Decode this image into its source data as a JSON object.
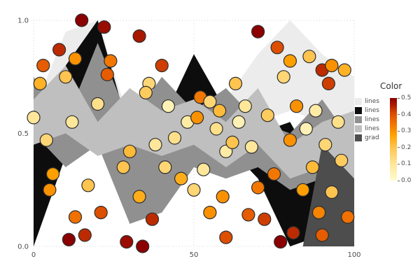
{
  "figure": {
    "background": "#ffffff"
  },
  "legend": {
    "title": "Color",
    "entries": [
      {
        "label": "lines",
        "color": "#ececec"
      },
      {
        "label": "lines",
        "color": "#0d0d0d"
      },
      {
        "label": "lines",
        "color": "#909090"
      },
      {
        "label": "lines",
        "color": "#bfbfbf"
      },
      {
        "label": "grad",
        "color": "#4d4d4d"
      }
    ],
    "colorbar": {
      "ticks": [
        "0.5",
        "0.4",
        "0.3",
        "0.2",
        "0.1",
        "0.0"
      ]
    }
  },
  "chart_data": [
    {
      "type": "area",
      "xlim": [
        0,
        100
      ],
      "ylim": [
        0,
        1
      ],
      "x_ticks": [
        "0",
        "50",
        "100"
      ],
      "x_tick_values": [
        0,
        50,
        100
      ],
      "y_ticks": [
        "0.0",
        "0.5",
        "1.0"
      ],
      "y_tick_values": [
        0,
        0.5,
        1
      ],
      "grid": "dotted",
      "x": [
        0,
        10,
        20,
        30,
        40,
        50,
        60,
        70,
        80,
        90,
        100
      ],
      "series": [
        {
          "name": "lines",
          "color": "#ececec",
          "top": [
            0.6,
            0.95,
            1.0,
            0.55,
            0.6,
            0.5,
            0.65,
            0.85,
            1.0,
            0.85,
            0.75
          ],
          "bottom": [
            0.5,
            0.55,
            0.5,
            0.45,
            0.45,
            0.45,
            0.5,
            0.55,
            0.6,
            0.55,
            0.5
          ]
        },
        {
          "name": "lines",
          "color": "#0d0d0d",
          "top": [
            0.45,
            0.8,
            1.0,
            0.5,
            0.55,
            0.85,
            0.6,
            0.5,
            0.55,
            0.3,
            0.5
          ],
          "bottom": [
            0.0,
            0.4,
            0.55,
            0.1,
            0.35,
            0.5,
            0.45,
            0.3,
            0.0,
            0.05,
            0.3
          ]
        },
        {
          "name": "lines",
          "color": "#909090",
          "top": [
            0.75,
            0.55,
            0.9,
            0.55,
            0.75,
            0.6,
            0.7,
            0.55,
            0.5,
            0.65,
            0.45
          ],
          "bottom": [
            0.5,
            0.35,
            0.45,
            0.1,
            0.15,
            0.35,
            0.3,
            0.35,
            0.25,
            0.3,
            0.1
          ]
        },
        {
          "name": "lines",
          "color": "#bfbfbf",
          "top": [
            0.65,
            0.8,
            0.55,
            0.7,
            0.6,
            0.65,
            0.55,
            0.7,
            0.45,
            0.55,
            0.6
          ],
          "bottom": [
            0.45,
            0.5,
            0.4,
            0.45,
            0.4,
            0.45,
            0.35,
            0.45,
            0.3,
            0.35,
            0.3
          ]
        },
        {
          "name": "grad",
          "color": "#4d4d4d",
          "polygon": [
            [
              84,
              0.0
            ],
            [
              90,
              0.45
            ],
            [
              100,
              0.3
            ],
            [
              100,
              0.0
            ]
          ]
        }
      ]
    },
    {
      "type": "scatter",
      "color_field": "Color",
      "color_domain": [
        0,
        0.5
      ],
      "colormap": [
        [
          0.0,
          "#fffbd0"
        ],
        [
          0.2,
          "#fee79a"
        ],
        [
          0.4,
          "#fec44f"
        ],
        [
          0.55,
          "#ffa200"
        ],
        [
          0.7,
          "#f07000"
        ],
        [
          0.82,
          "#d94801"
        ],
        [
          0.92,
          "#a81800"
        ],
        [
          1.0,
          "#8b0000"
        ]
      ],
      "points": [
        [
          15,
          1.0,
          0.5
        ],
        [
          22,
          0.97,
          0.48
        ],
        [
          33,
          0.93,
          0.46
        ],
        [
          70,
          0.95,
          0.5
        ],
        [
          3,
          0.8,
          0.38
        ],
        [
          8,
          0.87,
          0.44
        ],
        [
          13,
          0.83,
          0.3
        ],
        [
          24,
          0.82,
          0.34
        ],
        [
          40,
          0.8,
          0.42
        ],
        [
          76,
          0.88,
          0.4
        ],
        [
          80,
          0.82,
          0.28
        ],
        [
          86,
          0.84,
          0.2
        ],
        [
          90,
          0.78,
          0.44
        ],
        [
          93,
          0.8,
          0.3
        ],
        [
          97,
          0.78,
          0.24
        ],
        [
          2,
          0.72,
          0.24
        ],
        [
          10,
          0.75,
          0.2
        ],
        [
          23,
          0.76,
          0.38
        ],
        [
          36,
          0.72,
          0.15
        ],
        [
          63,
          0.72,
          0.2
        ],
        [
          78,
          0.75,
          0.15
        ],
        [
          92,
          0.72,
          0.42
        ],
        [
          0,
          0.57,
          0.1
        ],
        [
          20,
          0.63,
          0.12
        ],
        [
          35,
          0.68,
          0.18
        ],
        [
          42,
          0.62,
          0.05
        ],
        [
          52,
          0.66,
          0.34
        ],
        [
          55,
          0.64,
          0.15
        ],
        [
          58,
          0.6,
          0.22
        ],
        [
          66,
          0.62,
          0.1
        ],
        [
          82,
          0.62,
          0.3
        ],
        [
          88,
          0.6,
          0.08
        ],
        [
          12,
          0.55,
          0.1
        ],
        [
          48,
          0.55,
          0.08
        ],
        [
          51,
          0.57,
          0.3
        ],
        [
          57,
          0.52,
          0.12
        ],
        [
          64,
          0.55,
          0.05
        ],
        [
          73,
          0.58,
          0.18
        ],
        [
          85,
          0.52,
          0.05
        ],
        [
          95,
          0.55,
          0.12
        ],
        [
          4,
          0.47,
          0.15
        ],
        [
          30,
          0.42,
          0.22
        ],
        [
          38,
          0.45,
          0.1
        ],
        [
          44,
          0.48,
          0.12
        ],
        [
          60,
          0.42,
          0.08
        ],
        [
          62,
          0.46,
          0.2
        ],
        [
          68,
          0.44,
          0.1
        ],
        [
          80,
          0.47,
          0.3
        ],
        [
          91,
          0.45,
          0.15
        ],
        [
          6,
          0.32,
          0.28
        ],
        [
          28,
          0.35,
          0.2
        ],
        [
          41,
          0.35,
          0.15
        ],
        [
          46,
          0.3,
          0.25
        ],
        [
          53,
          0.34,
          0.1
        ],
        [
          75,
          0.32,
          0.34
        ],
        [
          87,
          0.35,
          0.22
        ],
        [
          96,
          0.38,
          0.18
        ],
        [
          5,
          0.25,
          0.3
        ],
        [
          17,
          0.27,
          0.2
        ],
        [
          33,
          0.22,
          0.25
        ],
        [
          50,
          0.25,
          0.15
        ],
        [
          59,
          0.22,
          0.3
        ],
        [
          70,
          0.26,
          0.34
        ],
        [
          84,
          0.25,
          0.28
        ],
        [
          93,
          0.24,
          0.2
        ],
        [
          13,
          0.13,
          0.35
        ],
        [
          21,
          0.15,
          0.4
        ],
        [
          37,
          0.12,
          0.44
        ],
        [
          55,
          0.15,
          0.3
        ],
        [
          67,
          0.14,
          0.38
        ],
        [
          72,
          0.12,
          0.42
        ],
        [
          89,
          0.15,
          0.32
        ],
        [
          98,
          0.13,
          0.35
        ],
        [
          11,
          0.03,
          0.5
        ],
        [
          16,
          0.05,
          0.44
        ],
        [
          29,
          0.02,
          0.48
        ],
        [
          34,
          0.0,
          0.5
        ],
        [
          60,
          0.04,
          0.4
        ],
        [
          77,
          0.02,
          0.5
        ],
        [
          81,
          0.06,
          0.44
        ],
        [
          90,
          0.05,
          0.38
        ]
      ]
    }
  ]
}
